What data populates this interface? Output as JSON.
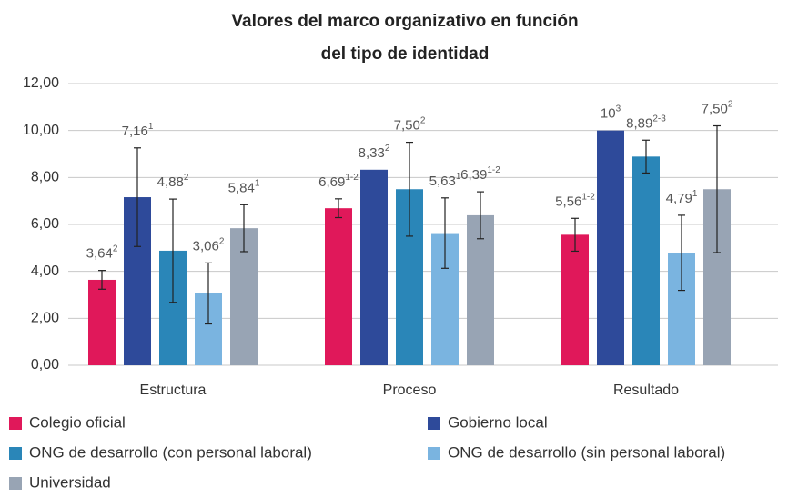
{
  "chart_data": {
    "type": "bar",
    "title": [
      "Valores del marco organizativo en función",
      "del tipo de identidad"
    ],
    "categories": [
      "Estructura",
      "Proceso",
      "Resultado"
    ],
    "ylim": [
      0,
      12
    ],
    "yticks": [
      {
        "value": 0,
        "label": "0,00"
      },
      {
        "value": 2,
        "label": "2,00"
      },
      {
        "value": 4,
        "label": "4,00"
      },
      {
        "value": 6,
        "label": "6,00"
      },
      {
        "value": 8,
        "label": "8,00"
      },
      {
        "value": 10,
        "label": "10,00"
      },
      {
        "value": 12,
        "label": "12,00"
      }
    ],
    "grid": true,
    "legend": "bottom",
    "series": [
      {
        "name": "Colegio oficial",
        "color": "#e0185a",
        "values": [
          3.64,
          6.69,
          5.56
        ],
        "errors": [
          0.4,
          0.4,
          0.7
        ],
        "value_labels": [
          "3,64",
          "6,69",
          "5,56"
        ],
        "superscripts": [
          "2",
          "1-2",
          "1-2"
        ]
      },
      {
        "name": "Gobierno local",
        "color": "#2e4a9a",
        "values": [
          7.16,
          8.33,
          10
        ],
        "errors": [
          2.1,
          null,
          null
        ],
        "value_labels": [
          "7,16",
          "8,33",
          "10"
        ],
        "superscripts": [
          "1",
          "2",
          "3"
        ]
      },
      {
        "name": "ONG de desarrollo (con personal laboral)",
        "color": "#2a86b8",
        "values": [
          4.88,
          7.5,
          8.89
        ],
        "errors": [
          2.2,
          2.0,
          0.7
        ],
        "value_labels": [
          "4,88",
          "7,50",
          "8,89"
        ],
        "superscripts": [
          "2",
          "2",
          "2-3"
        ]
      },
      {
        "name": "ONG de desarrollo (sin personal laboral)",
        "color": "#7ab4e0",
        "values": [
          3.06,
          5.63,
          4.79
        ],
        "errors": [
          1.3,
          1.5,
          1.6
        ],
        "value_labels": [
          "3,06",
          "5,63",
          "4,79"
        ],
        "superscripts": [
          "2",
          "1",
          "1"
        ]
      },
      {
        "name": "Universidad",
        "color": "#98a4b4",
        "values": [
          5.84,
          6.39,
          7.5
        ],
        "errors": [
          1.0,
          1.0,
          2.7
        ],
        "value_labels": [
          "5,84",
          "6,39",
          "7,50"
        ],
        "superscripts": [
          "1",
          "1-2",
          "2"
        ]
      }
    ]
  }
}
